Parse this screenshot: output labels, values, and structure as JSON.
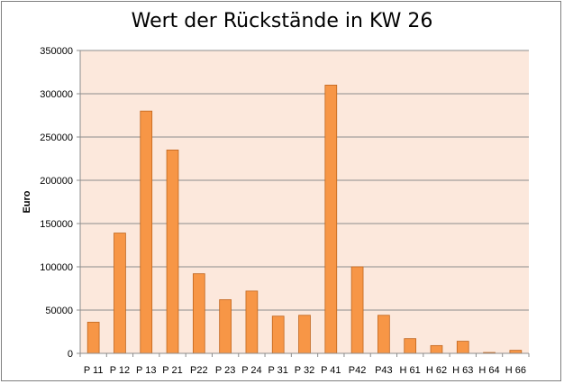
{
  "chart_data": {
    "type": "bar",
    "title": "Wert der Rückstände in KW 26",
    "xlabel": "",
    "ylabel": "Euro",
    "ylim": [
      0,
      350000
    ],
    "y_ticks": [
      "0",
      "50000",
      "100000",
      "150000",
      "200000",
      "250000",
      "300000",
      "350000"
    ],
    "categories": [
      "P 11",
      "P 12",
      "P 13",
      "P 21",
      "P22",
      "P 23",
      "P 24",
      "P 31",
      "P 32",
      "P 41",
      "P42",
      "P43",
      "H 61",
      "H 62",
      "H 63",
      "H 64",
      "H 66"
    ],
    "values": [
      36000,
      139000,
      280000,
      235000,
      92000,
      62000,
      72000,
      43000,
      44000,
      310000,
      100000,
      44000,
      17000,
      9000,
      14000,
      1000,
      3500
    ],
    "grid": true,
    "legend": "none",
    "colors": {
      "bar": "#f79646",
      "bar_edge": "#c0651d",
      "plot_bg": "#fce8dc",
      "grid": "#8c8c8c"
    }
  }
}
